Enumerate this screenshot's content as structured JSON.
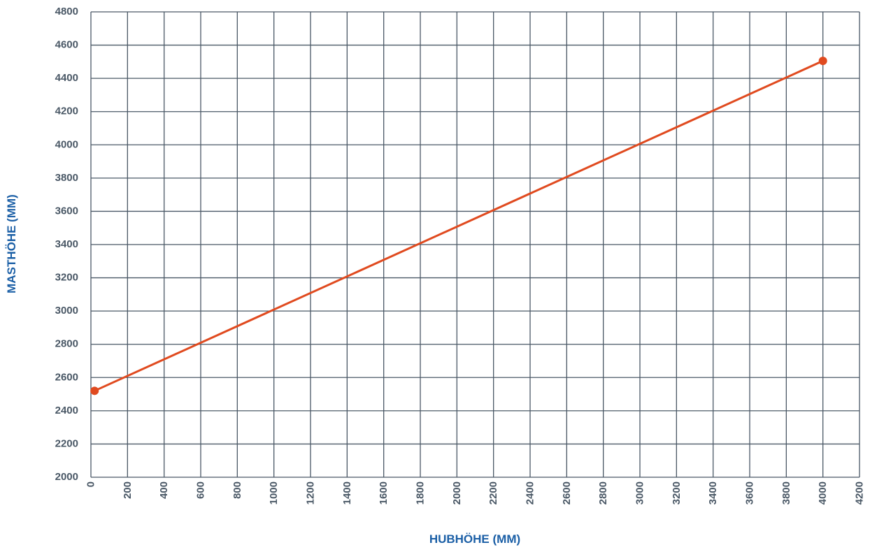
{
  "chart_data": {
    "type": "line",
    "title": "",
    "xlabel": "HUBHÖHE (MM)",
    "ylabel": "MASTHÖHE (MM)",
    "xlim": [
      0,
      4200
    ],
    "ylim": [
      2000,
      4800
    ],
    "x_ticks": [
      0,
      200,
      400,
      600,
      800,
      1000,
      1200,
      1400,
      1600,
      1800,
      2000,
      2200,
      2400,
      2600,
      2800,
      3000,
      3200,
      3400,
      3600,
      3800,
      4000,
      4200
    ],
    "y_ticks": [
      2000,
      2200,
      2400,
      2600,
      2800,
      3000,
      3200,
      3400,
      3600,
      3800,
      4000,
      4200,
      4400,
      4600,
      4800
    ],
    "grid": true,
    "series": [
      {
        "color": "#e04a1f",
        "points": [
          {
            "x": 20,
            "y": 2520
          },
          {
            "x": 4000,
            "y": 4505
          }
        ]
      }
    ],
    "colors": {
      "grid": "#4a5866",
      "tick_text": "#4a5866",
      "axis_title": "#1b5fa6"
    }
  }
}
